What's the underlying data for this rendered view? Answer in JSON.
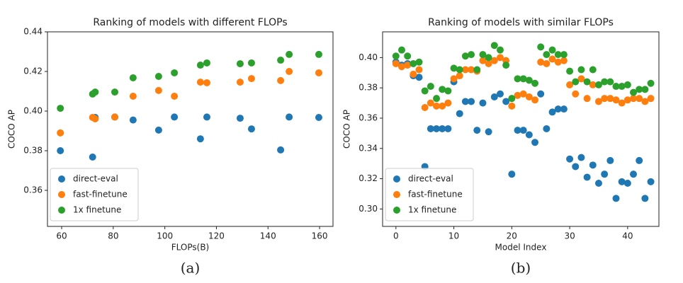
{
  "chart_data": [
    {
      "type": "scatter",
      "title": "Ranking of models with different FLOPs",
      "x_label": "FLOPs(B)",
      "y_label": "COCO AP",
      "caption": "(a)",
      "x": [
        59.5,
        72,
        73,
        80.6,
        87.7,
        97.6,
        103.7,
        113.8,
        116.3,
        129.2,
        133.6,
        144.9,
        148.2,
        159.7
      ],
      "series": [
        {
          "name": "direct-eval",
          "color": "#1f77b4",
          "values": [
            0.38,
            0.3768,
            0.3968,
            0.397,
            0.3955,
            0.3904,
            0.397,
            0.386,
            0.397,
            0.3964,
            0.391,
            0.3804,
            0.397,
            0.3968
          ]
        },
        {
          "name": "fast-finetune",
          "color": "#ff7f0e",
          "values": [
            0.389,
            0.3968,
            0.3961,
            0.397,
            0.4075,
            0.4104,
            0.4075,
            0.4146,
            0.4143,
            0.4146,
            0.4164,
            0.4154,
            0.42,
            0.4193
          ]
        },
        {
          "name": "1x finetune",
          "color": "#2ca02c",
          "values": [
            0.4014,
            0.4086,
            0.4096,
            0.4096,
            0.4168,
            0.4175,
            0.4193,
            0.4232,
            0.4243,
            0.4239,
            0.4243,
            0.4257,
            0.4286,
            0.4286
          ]
        }
      ],
      "xlim": [
        54.5,
        165.2
      ],
      "xticks": [
        60,
        80,
        100,
        120,
        140,
        160
      ],
      "ylim": [
        0.3418,
        0.44
      ],
      "yticks": [
        0.36,
        0.38,
        {
          "value": 0.4,
          "label": "0.40"
        },
        0.42,
        0.44
      ],
      "legend": "lower left",
      "grid": false
    },
    {
      "type": "scatter",
      "title": "Ranking of models with similar FLOPs",
      "x_label": "Model Index",
      "y_label": "COCO AP",
      "caption": "(b)",
      "x": [
        0,
        1,
        2,
        3,
        4,
        5,
        6,
        7,
        8,
        9,
        10,
        11,
        12,
        13,
        14,
        15,
        16,
        17,
        18,
        19,
        20,
        21,
        22,
        23,
        24,
        25,
        26,
        27,
        28,
        29,
        30,
        31,
        32,
        33,
        34,
        35,
        36,
        37,
        38,
        39,
        40,
        41,
        42,
        43,
        44
      ],
      "series": [
        {
          "name": "direct-eval",
          "color": "#1f77b4",
          "values": [
            0.397,
            0.395,
            0.396,
            0.388,
            0.387,
            0.328,
            0.353,
            0.353,
            0.353,
            0.353,
            0.384,
            0.363,
            0.371,
            0.371,
            0.352,
            0.37,
            0.351,
            0.374,
            0.376,
            0.371,
            0.323,
            0.352,
            0.352,
            0.349,
            0.344,
            0.376,
            0.353,
            0.364,
            0.366,
            0.366,
            0.333,
            0.328,
            0.334,
            0.321,
            0.329,
            0.317,
            0.323,
            0.332,
            0.307,
            0.318,
            0.317,
            0.323,
            0.332,
            0.307,
            0.318
          ]
        },
        {
          "name": "fast-finetune",
          "color": "#ff7f0e",
          "values": [
            0.396,
            0.394,
            0.395,
            0.389,
            0.392,
            0.367,
            0.37,
            0.368,
            0.368,
            0.37,
            0.386,
            0.388,
            0.392,
            0.392,
            0.391,
            0.398,
            0.396,
            0.398,
            0.4,
            0.398,
            0.368,
            0.375,
            0.376,
            0.374,
            0.372,
            0.397,
            0.396,
            0.399,
            0.397,
            0.398,
            0.382,
            0.376,
            0.386,
            0.373,
            0.382,
            0.371,
            0.373,
            0.373,
            0.372,
            0.37,
            0.372,
            0.373,
            0.373,
            0.371,
            0.373
          ]
        },
        {
          "name": "1x finetune",
          "color": "#2ca02c",
          "values": [
            0.401,
            0.405,
            0.401,
            0.396,
            0.397,
            0.378,
            0.381,
            0.373,
            0.379,
            0.378,
            0.393,
            0.392,
            0.401,
            0.402,
            0.392,
            0.402,
            0.4,
            0.408,
            0.405,
            0.395,
            0.373,
            0.386,
            0.386,
            0.385,
            0.383,
            0.407,
            0.402,
            0.405,
            0.402,
            0.402,
            0.391,
            0.384,
            0.392,
            0.384,
            0.392,
            0.382,
            0.384,
            0.384,
            0.381,
            0.381,
            0.382,
            0.377,
            0.379,
            0.379,
            0.383
          ]
        }
      ],
      "xlim": [
        -2.3,
        45.4
      ],
      "xticks": [
        0,
        10,
        20,
        30,
        40
      ],
      "ylim": [
        0.2885,
        0.417
      ],
      "yticks": [
        {
          "value": 0.3,
          "label": "0.30"
        },
        0.32,
        0.34,
        0.36,
        0.38,
        {
          "value": 0.4,
          "label": "0.40"
        }
      ],
      "legend": "lower left",
      "grid": false
    }
  ]
}
